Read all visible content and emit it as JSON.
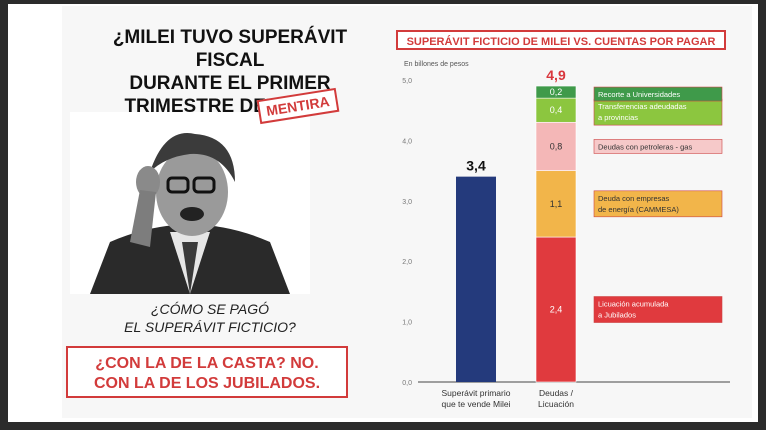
{
  "left": {
    "question_lines": [
      "¿MILEI TUVO SUPERÁVIT FISCAL",
      "DURANTE EL PRIMER",
      "TRIMESTRE DEL AÑO?"
    ],
    "stamp": "MENTIRA",
    "subquestion_lines": [
      "¿CÓMO SE PAGÓ",
      "EL SUPERÁVIT FICTICIO?"
    ],
    "answer_lines": [
      "¿CON LA DE LA CASTA? NO.",
      "CON LA DE LOS JUBILADOS."
    ]
  },
  "chart_data": {
    "type": "bar",
    "title": "SUPERÁVIT FICTICIO DE MILEI VS. CUENTAS POR PAGAR",
    "ylabel": "En billones de pesos",
    "ylim": [
      0,
      5
    ],
    "yticks": [
      "0,0",
      "1,0",
      "2,0",
      "3,0",
      "4,0",
      "5,0"
    ],
    "categories": [
      [
        "Superávit primario",
        "que te vende Milei"
      ],
      [
        "Deudas /",
        "Licuación"
      ]
    ],
    "bar_primary": {
      "value": 3.4,
      "label": "3,4",
      "color": "#243a7c"
    },
    "stack_total": {
      "value": 4.9,
      "label": "4,9",
      "color": "#d9373d"
    },
    "stack": [
      {
        "name": [
          "Licuación acumulada",
          "a Jubilados"
        ],
        "value": 2.4,
        "label": "2,4",
        "color": "#e03a3e",
        "legend_fill": "#e03a3e",
        "text_color": "#ffffff"
      },
      {
        "name": [
          "Deuda con empresas",
          "de energía (CAMMESA)"
        ],
        "value": 1.1,
        "label": "1,1",
        "color": "#f2b54a",
        "legend_fill": "#f2b54a",
        "text_color": "#333333"
      },
      {
        "name": [
          "Deudas con petroleras - gas"
        ],
        "value": 0.8,
        "label": "0,8",
        "color": "#f4b7b7",
        "legend_fill": "#f6c9c9",
        "text_color": "#333333"
      },
      {
        "name": [
          "Transferencias adeudadas",
          "a provincias"
        ],
        "value": 0.4,
        "label": "0,4",
        "color": "#8cc63f",
        "legend_fill": "#8cc63f",
        "text_color": "#ffffff"
      },
      {
        "name": [
          "Recorte a Universidades"
        ],
        "value": 0.2,
        "label": "0,2",
        "color": "#3f9a4a",
        "legend_fill": "#3f9a4a",
        "text_color": "#ffffff"
      }
    ]
  }
}
